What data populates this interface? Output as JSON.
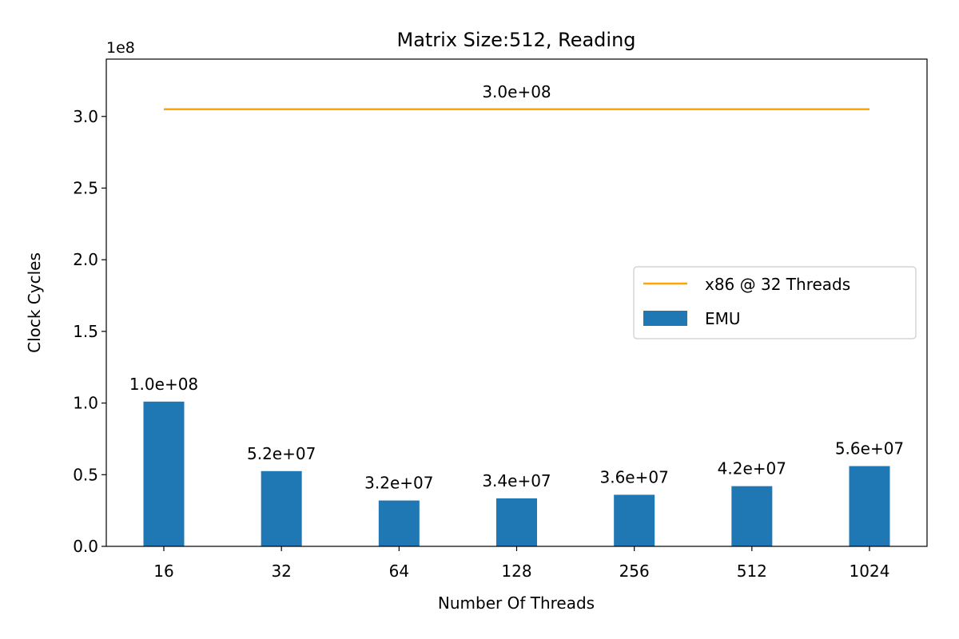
{
  "chart_data": {
    "type": "bar",
    "title": "Matrix Size:512, Reading",
    "xlabel": "Number Of Threads",
    "ylabel": "Clock Cycles",
    "y_offset_label": "1e8",
    "categories": [
      "16",
      "32",
      "64",
      "128",
      "256",
      "512",
      "1024"
    ],
    "series": [
      {
        "name": "EMU",
        "type": "bar",
        "color": "#1f77b4",
        "values": [
          101000000,
          52500000,
          32000000,
          33500000,
          36000000,
          42000000,
          56000000
        ],
        "labels": [
          "1.0e+08",
          "5.2e+07",
          "3.2e+07",
          "3.4e+07",
          "3.6e+07",
          "4.2e+07",
          "5.6e+07"
        ]
      },
      {
        "name": "x86 @ 32 Threads",
        "type": "line",
        "color": "#ffa500",
        "value": 305000000,
        "label": "3.0e+08"
      }
    ],
    "ylim": [
      0,
      340000000
    ],
    "yticks": [
      0,
      50000000,
      100000000,
      150000000,
      200000000,
      250000000,
      300000000
    ],
    "ytick_labels": [
      "0.0",
      "0.5",
      "1.0",
      "1.5",
      "2.0",
      "2.5",
      "3.0"
    ],
    "grid": false,
    "legend_position": "center-right"
  }
}
